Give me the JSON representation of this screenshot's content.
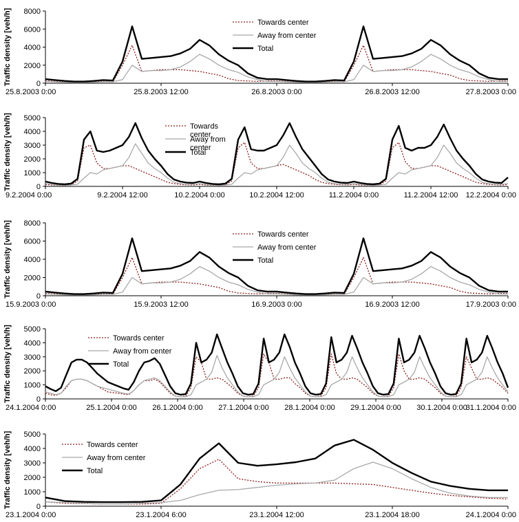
{
  "colors": {
    "towards": "#8b1a1a",
    "away": "#a8a8a8",
    "total": "#000000",
    "axis": "#000000",
    "grid": "#ffffff"
  },
  "chart_data": [
    {
      "type": "line",
      "ylabel": "Traffic density [veh/h]",
      "ylim": [
        0,
        8000
      ],
      "yticks": [
        "0",
        "2000",
        "4000",
        "6000",
        "8000"
      ],
      "x_tick_labels": [
        "25.8.2003 0:00",
        "25.8.2003 12:00",
        "26.8.2003 0:00",
        "26.8.2003 12:00",
        "27.8.2003 0:00"
      ],
      "xlim_hours": [
        0,
        48
      ],
      "legend_position": "top-center",
      "series": [
        {
          "name": "Towards center",
          "style": "dotted",
          "values": [
            250,
            200,
            150,
            100,
            100,
            150,
            200,
            150,
            2000,
            4200,
            1300,
            1400,
            1500,
            1500,
            1500,
            1400,
            1300,
            1100,
            900,
            500,
            300,
            250,
            200,
            250,
            250,
            200,
            150,
            100,
            100,
            150,
            200,
            150,
            2000,
            4200,
            1300,
            1400,
            1500,
            1500,
            1500,
            1400,
            1300,
            1100,
            900,
            500,
            300,
            250,
            200,
            250,
            250
          ]
        },
        {
          "name": "Away from center",
          "style": "solid-gray",
          "values": [
            200,
            150,
            100,
            80,
            80,
            100,
            150,
            150,
            400,
            2000,
            1300,
            1400,
            1400,
            1500,
            1800,
            2400,
            3200,
            2700,
            2000,
            1500,
            1200,
            700,
            400,
            200,
            200,
            150,
            100,
            80,
            80,
            100,
            150,
            150,
            400,
            2000,
            1300,
            1400,
            1400,
            1500,
            1800,
            2400,
            3200,
            2700,
            2000,
            1500,
            1200,
            700,
            400,
            200,
            200
          ]
        },
        {
          "name": "Total",
          "style": "solid-bold",
          "values": [
            450,
            350,
            250,
            180,
            180,
            250,
            350,
            300,
            2400,
            6300,
            2700,
            2800,
            2900,
            3000,
            3300,
            3800,
            4800,
            4200,
            3200,
            2500,
            2000,
            1100,
            600,
            450,
            450,
            350,
            250,
            180,
            180,
            250,
            350,
            300,
            2400,
            6300,
            2700,
            2800,
            2900,
            3000,
            3300,
            3800,
            4800,
            4200,
            3200,
            2500,
            2000,
            1100,
            600,
            450,
            450
          ]
        }
      ]
    },
    {
      "type": "line",
      "ylabel": "Traffic density [veh/h]",
      "ylim": [
        0,
        5000
      ],
      "yticks": [
        "0",
        "1000",
        "2000",
        "3000",
        "4000",
        "5000"
      ],
      "x_tick_labels": [
        "9.2.2004 0:00",
        "9.2.2004 12:00",
        "10.2.2004 0:00",
        "10.2.2004 12:00",
        "11.2.2004 0:00",
        "11.2.2004 12:00",
        "12.2.2004 0:00"
      ],
      "xlim_hours": [
        0,
        72
      ],
      "legend_position": "top-center",
      "series": [
        {
          "name": "Towards\ncenter",
          "style": "dotted",
          "values": [
            150,
            100,
            80,
            70,
            100,
            400,
            2800,
            3000,
            1700,
            1300,
            1300,
            1400,
            1500,
            1500,
            1300,
            1100,
            900,
            700,
            500,
            300,
            200,
            150,
            120,
            100,
            150,
            100,
            80,
            70,
            100,
            400,
            2800,
            3200,
            1700,
            1300,
            1300,
            1400,
            1500,
            1600,
            1400,
            1200,
            1000,
            800,
            500,
            300,
            200,
            150,
            120,
            100,
            150,
            100,
            80,
            70,
            100,
            400,
            2800,
            3200,
            1800,
            1300,
            1300,
            1400,
            1500,
            1500,
            1300,
            1100,
            900,
            700,
            500,
            300,
            200,
            150,
            120,
            100,
            150
          ]
        },
        {
          "name": "Away from\ncenter",
          "style": "solid-gray",
          "values": [
            200,
            150,
            100,
            80,
            100,
            150,
            600,
            1000,
            900,
            1200,
            1300,
            1400,
            1500,
            2100,
            3100,
            2400,
            1700,
            1300,
            1000,
            600,
            300,
            200,
            150,
            150,
            200,
            150,
            100,
            80,
            100,
            150,
            600,
            1000,
            900,
            1200,
            1300,
            1400,
            1500,
            2100,
            3000,
            2400,
            1700,
            1300,
            1000,
            600,
            300,
            200,
            150,
            150,
            200,
            150,
            100,
            80,
            100,
            150,
            600,
            1000,
            900,
            1200,
            1300,
            1400,
            1500,
            2100,
            3000,
            2400,
            1700,
            1300,
            1000,
            600,
            300,
            200,
            150,
            150,
            200
          ]
        },
        {
          "name": "Total",
          "style": "solid-bold",
          "values": [
            350,
            250,
            180,
            150,
            200,
            550,
            3400,
            4000,
            2600,
            2500,
            2600,
            2800,
            3000,
            3600,
            4600,
            3500,
            2600,
            2000,
            1500,
            900,
            500,
            350,
            270,
            250,
            350,
            250,
            180,
            150,
            200,
            550,
            3400,
            4300,
            2700,
            2600,
            2600,
            2800,
            3000,
            3700,
            4600,
            3600,
            2700,
            2100,
            1500,
            900,
            500,
            350,
            270,
            250,
            350,
            250,
            180,
            150,
            200,
            550,
            3400,
            4400,
            2800,
            2600,
            2800,
            2800,
            3000,
            3600,
            4500,
            3500,
            2600,
            2000,
            1500,
            900,
            500,
            350,
            270,
            250,
            650
          ]
        }
      ]
    },
    {
      "type": "line",
      "ylabel": "Traffic density [veh/h]",
      "ylim": [
        0,
        8000
      ],
      "yticks": [
        "0",
        "2000",
        "4000",
        "6000",
        "8000"
      ],
      "x_tick_labels": [
        "15.9.2003 0:00",
        "15.9.2003 12:00",
        "16.9.2003 0:00",
        "16.9.2003 12:00",
        "17.9.2003 0:00"
      ],
      "xlim_hours": [
        0,
        48
      ],
      "legend_position": "top-center",
      "series": [
        {
          "name": "Towards center",
          "style": "dotted",
          "values": [
            250,
            200,
            150,
            100,
            100,
            150,
            200,
            150,
            2000,
            4200,
            1300,
            1400,
            1500,
            1500,
            1500,
            1400,
            1300,
            1100,
            900,
            500,
            300,
            250,
            200,
            250,
            250,
            200,
            150,
            100,
            100,
            150,
            200,
            150,
            2000,
            4200,
            1300,
            1400,
            1500,
            1500,
            1500,
            1400,
            1300,
            1100,
            900,
            500,
            300,
            250,
            200,
            250,
            250
          ]
        },
        {
          "name": "Away from center",
          "style": "solid-gray",
          "values": [
            200,
            150,
            100,
            80,
            80,
            100,
            150,
            150,
            400,
            2000,
            1300,
            1400,
            1400,
            1500,
            1800,
            2400,
            3200,
            2700,
            2000,
            1500,
            1200,
            700,
            400,
            200,
            200,
            150,
            100,
            80,
            80,
            100,
            150,
            150,
            400,
            2000,
            1300,
            1400,
            1400,
            1500,
            1800,
            2400,
            3200,
            2700,
            2000,
            1500,
            1200,
            700,
            400,
            200,
            200
          ]
        },
        {
          "name": "Total",
          "style": "solid-bold",
          "values": [
            450,
            350,
            250,
            180,
            180,
            250,
            350,
            300,
            2400,
            6300,
            2700,
            2800,
            2900,
            3000,
            3300,
            3800,
            4800,
            4200,
            3200,
            2500,
            2000,
            1100,
            600,
            450,
            450,
            350,
            250,
            180,
            180,
            250,
            350,
            300,
            2400,
            6300,
            2700,
            2800,
            2900,
            3000,
            3300,
            3800,
            4800,
            4200,
            3200,
            2500,
            2000,
            1100,
            600,
            450,
            450
          ]
        }
      ]
    },
    {
      "type": "line",
      "ylabel": "Traffic density [veh/h]",
      "ylim": [
        0,
        5000
      ],
      "yticks": [
        "0",
        "1000",
        "2000",
        "3000",
        "4000",
        "5000"
      ],
      "x_tick_labels": [
        "24.1.2004 0:00",
        "25.1.2004 0:00",
        "26.1.2004 0:00",
        "27.1.2004 0:00",
        "28.1.2004 0:00",
        "29.1.2004 0:00",
        "30.1.2004 0:00",
        "31.1.2004 0:00"
      ],
      "xlim_hours": [
        0,
        168
      ],
      "legend_position": "top-left",
      "series": [
        {
          "name": "Towards center",
          "style": "dotted",
          "values": [
            400,
            300,
            250,
            400,
            800,
            1300,
            1400,
            1400,
            1300,
            1100,
            900,
            700,
            500,
            450,
            400,
            350,
            300,
            600,
            1000,
            1300,
            1300,
            1400,
            1200,
            800,
            400,
            200,
            150,
            200,
            800,
            3000,
            2600,
            1400,
            1400,
            1500,
            1400,
            1100,
            800,
            400,
            200,
            150,
            200,
            800,
            3200,
            2600,
            1400,
            1400,
            1500,
            1500,
            1100,
            800,
            400,
            200,
            150,
            200,
            800,
            3200,
            1800,
            1400,
            1400,
            1500,
            1400,
            1100,
            800,
            400,
            200,
            150,
            200,
            800,
            3200,
            2000,
            1400,
            1400,
            1500,
            1400,
            1100,
            800,
            400,
            200,
            150,
            200,
            800,
            3000,
            2200,
            1400,
            1400,
            1500,
            1400,
            1100,
            800,
            400
          ]
        },
        {
          "name": "Away from center",
          "style": "solid-gray",
          "values": [
            500,
            400,
            300,
            400,
            900,
            1300,
            1400,
            1400,
            1300,
            1100,
            900,
            800,
            700,
            600,
            500,
            400,
            350,
            600,
            1000,
            1300,
            1400,
            1500,
            1300,
            900,
            500,
            200,
            150,
            150,
            300,
            1000,
            1200,
            1400,
            1900,
            3100,
            2200,
            1500,
            1000,
            500,
            200,
            150,
            150,
            300,
            1000,
            1200,
            1400,
            1900,
            3000,
            2200,
            1500,
            1000,
            500,
            200,
            150,
            150,
            300,
            1000,
            1200,
            1400,
            1900,
            3000,
            2200,
            1500,
            1000,
            500,
            200,
            150,
            150,
            300,
            1000,
            1200,
            1400,
            1900,
            3000,
            2200,
            1500,
            1000,
            500,
            200,
            150,
            150,
            300,
            1000,
            1200,
            1400,
            1900,
            3000,
            2200,
            1500,
            1000,
            500
          ]
        },
        {
          "name": "Total",
          "style": "solid-bold",
          "values": [
            900,
            700,
            550,
            800,
            1700,
            2600,
            2800,
            2800,
            2600,
            2200,
            1800,
            1500,
            1200,
            1050,
            900,
            750,
            650,
            1200,
            2000,
            2600,
            2700,
            2900,
            2500,
            1700,
            900,
            400,
            300,
            350,
            1100,
            4000,
            2600,
            2800,
            3300,
            4600,
            3600,
            2600,
            1800,
            900,
            400,
            300,
            350,
            1100,
            4300,
            2600,
            2800,
            3300,
            4600,
            3700,
            2600,
            1800,
            900,
            400,
            300,
            350,
            1100,
            4400,
            2600,
            2800,
            3300,
            4500,
            3600,
            2600,
            1800,
            900,
            400,
            300,
            350,
            1100,
            4300,
            2600,
            2800,
            3300,
            4500,
            3600,
            2600,
            1800,
            900,
            400,
            300,
            350,
            1100,
            4300,
            2600,
            2800,
            3300,
            4500,
            3600,
            2600,
            1800,
            800
          ]
        }
      ]
    },
    {
      "type": "line",
      "ylabel": "Traffic density [veh/h]",
      "ylim": [
        0,
        5000
      ],
      "yticks": [
        "0",
        "1000",
        "2000",
        "3000",
        "4000",
        "5000"
      ],
      "x_tick_labels": [
        "23.1.2004 0:00",
        "23.1.2004 6:00",
        "23.1.2004 12:00",
        "23.1.2004 18:00",
        "24.1.2004 0:00"
      ],
      "xlim_hours": [
        0,
        24
      ],
      "legend_position": "top-left",
      "series": [
        {
          "name": "Towards center",
          "style": "dotted",
          "values": [
            300,
            200,
            180,
            150,
            150,
            150,
            200,
            1200,
            2600,
            3250,
            1900,
            1700,
            1600,
            1600,
            1600,
            1600,
            1550,
            1500,
            1300,
            1100,
            900,
            750,
            650,
            550,
            500
          ]
        },
        {
          "name": "Away from center",
          "style": "solid-gray",
          "values": [
            300,
            250,
            200,
            150,
            150,
            200,
            250,
            400,
            800,
            1100,
            1150,
            1300,
            1450,
            1550,
            1600,
            1800,
            2600,
            3050,
            2600,
            1900,
            1300,
            900,
            700,
            600,
            600
          ]
        },
        {
          "name": "Total",
          "style": "solid-bold",
          "values": [
            600,
            350,
            300,
            280,
            280,
            300,
            400,
            1500,
            3300,
            4350,
            3000,
            2800,
            2900,
            3050,
            3300,
            4200,
            4600,
            3900,
            3000,
            2300,
            1700,
            1400,
            1200,
            1100,
            1100
          ]
        }
      ]
    }
  ]
}
